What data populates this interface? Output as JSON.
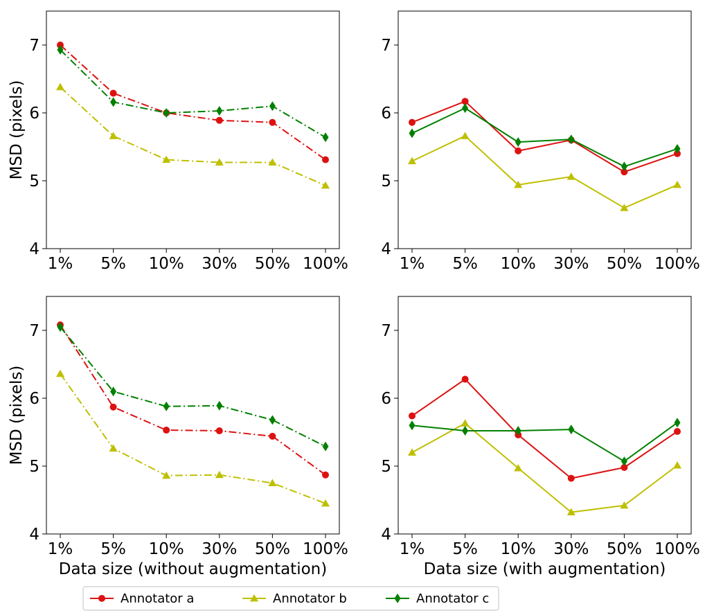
{
  "chart_data": [
    {
      "type": "line",
      "panel": "top-left",
      "categories": [
        "1%",
        "5%",
        "10%",
        "30%",
        "50%",
        "100%"
      ],
      "xlabel": "",
      "ylabel": "MSD (pixels)",
      "ylim": [
        4,
        7.5
      ],
      "yticks": [
        "4",
        "5",
        "6",
        "7"
      ],
      "line_style": "dash-dot",
      "grid": false,
      "series": [
        {
          "name": "Annotator a",
          "values": [
            7.0,
            6.29,
            6.0,
            5.89,
            5.86,
            5.31
          ]
        },
        {
          "name": "Annotator b",
          "values": [
            6.38,
            5.66,
            5.31,
            5.27,
            5.27,
            4.93
          ]
        },
        {
          "name": "Annotator c",
          "values": [
            6.93,
            6.16,
            6.0,
            6.03,
            6.1,
            5.64
          ]
        }
      ]
    },
    {
      "type": "line",
      "panel": "top-right",
      "categories": [
        "1%",
        "5%",
        "10%",
        "30%",
        "50%",
        "100%"
      ],
      "xlabel": "",
      "ylabel": "",
      "ylim": [
        4,
        7.5
      ],
      "yticks": [
        "4",
        "5",
        "6",
        "7"
      ],
      "line_style": "solid",
      "grid": false,
      "series": [
        {
          "name": "Annotator a",
          "values": [
            5.86,
            6.17,
            5.44,
            5.6,
            5.13,
            5.4
          ]
        },
        {
          "name": "Annotator b",
          "values": [
            5.29,
            5.66,
            4.94,
            5.06,
            4.6,
            4.94
          ]
        },
        {
          "name": "Annotator c",
          "values": [
            5.7,
            6.07,
            5.57,
            5.61,
            5.21,
            5.47
          ]
        }
      ]
    },
    {
      "type": "line",
      "panel": "bottom-left",
      "categories": [
        "1%",
        "5%",
        "10%",
        "30%",
        "50%",
        "100%"
      ],
      "xlabel": "Data size (without augmentation)",
      "ylabel": "MSD (pixels)",
      "ylim": [
        4,
        7.5
      ],
      "yticks": [
        "4",
        "5",
        "6",
        "7"
      ],
      "line_style": "dash-dot",
      "grid": false,
      "series": [
        {
          "name": "Annotator a",
          "values": [
            7.08,
            5.87,
            5.53,
            5.52,
            5.44,
            4.87
          ]
        },
        {
          "name": "Annotator b",
          "values": [
            6.36,
            5.26,
            4.86,
            4.87,
            4.75,
            4.45
          ]
        },
        {
          "name": "Annotator c",
          "values": [
            7.05,
            6.1,
            5.88,
            5.89,
            5.68,
            5.29
          ]
        }
      ]
    },
    {
      "type": "line",
      "panel": "bottom-right",
      "categories": [
        "1%",
        "5%",
        "10%",
        "30%",
        "50%",
        "100%"
      ],
      "xlabel": "Data size (with augmentation)",
      "ylabel": "",
      "ylim": [
        4,
        7.5
      ],
      "yticks": [
        "4",
        "5",
        "6",
        "7"
      ],
      "line_style": "solid",
      "grid": false,
      "series": [
        {
          "name": "Annotator a",
          "values": [
            5.74,
            6.28,
            5.46,
            4.82,
            4.98,
            5.51
          ]
        },
        {
          "name": "Annotator b",
          "values": [
            5.2,
            5.63,
            4.97,
            4.32,
            4.42,
            5.01
          ]
        },
        {
          "name": "Annotator c",
          "values": [
            5.6,
            5.52,
            5.52,
            5.54,
            5.07,
            5.64
          ]
        }
      ]
    }
  ],
  "legend": {
    "placement": "bottom",
    "entries": [
      {
        "label": "Annotator a",
        "color": "#dd1111",
        "marker": "circle"
      },
      {
        "label": "Annotator b",
        "color": "#bfbf00",
        "marker": "triangle"
      },
      {
        "label": "Annotator c",
        "color": "#008000",
        "marker": "diamond"
      }
    ]
  }
}
